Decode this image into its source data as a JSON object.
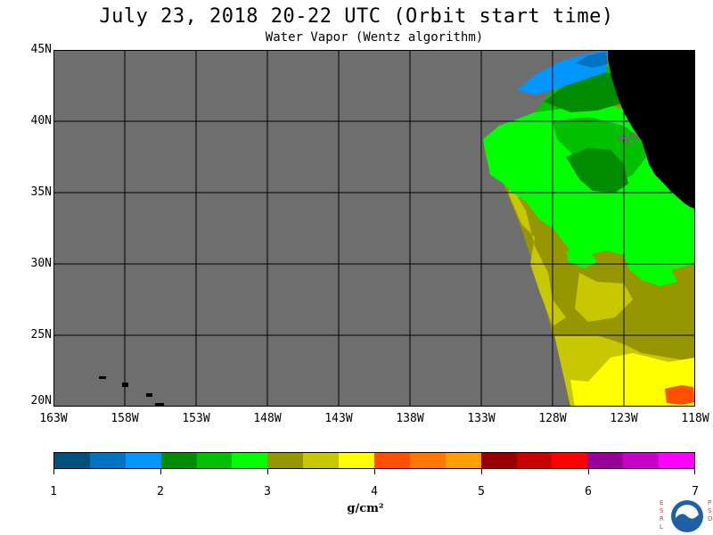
{
  "header": {
    "title": "July 23, 2018  20-22 UTC  (Orbit start time)",
    "subtitle": "Water Vapor (Wentz algorithm)"
  },
  "map": {
    "lat_labels": [
      "45N",
      "40N",
      "35N",
      "30N",
      "25N",
      "20N"
    ],
    "lon_labels": [
      "163W",
      "158W",
      "153W",
      "148W",
      "143W",
      "138W",
      "133W",
      "128W",
      "123W",
      "118W"
    ],
    "station_label": "CZD",
    "colors": {
      "no_data": "#6e6e6e",
      "land": "#000000",
      "station": "#ff00ff",
      "grid": "#000000"
    }
  },
  "colorbar": {
    "units": "g/cm²",
    "tick_labels": [
      "1",
      "2",
      "3",
      "4",
      "5",
      "6",
      "7"
    ],
    "colors": [
      "#00507a",
      "#0074c0",
      "#0096ff",
      "#008c00",
      "#00c000",
      "#00ff00",
      "#969600",
      "#c8c800",
      "#ffff00",
      "#ff5000",
      "#ff7800",
      "#ffa000",
      "#960000",
      "#c80000",
      "#ff0000",
      "#960096",
      "#c800c8",
      "#ff00ff"
    ]
  },
  "logo": {
    "left_letters": "ESRL",
    "right_letters": "PSD",
    "name": "NOAA",
    "icon": "noaa-logo-icon"
  }
}
